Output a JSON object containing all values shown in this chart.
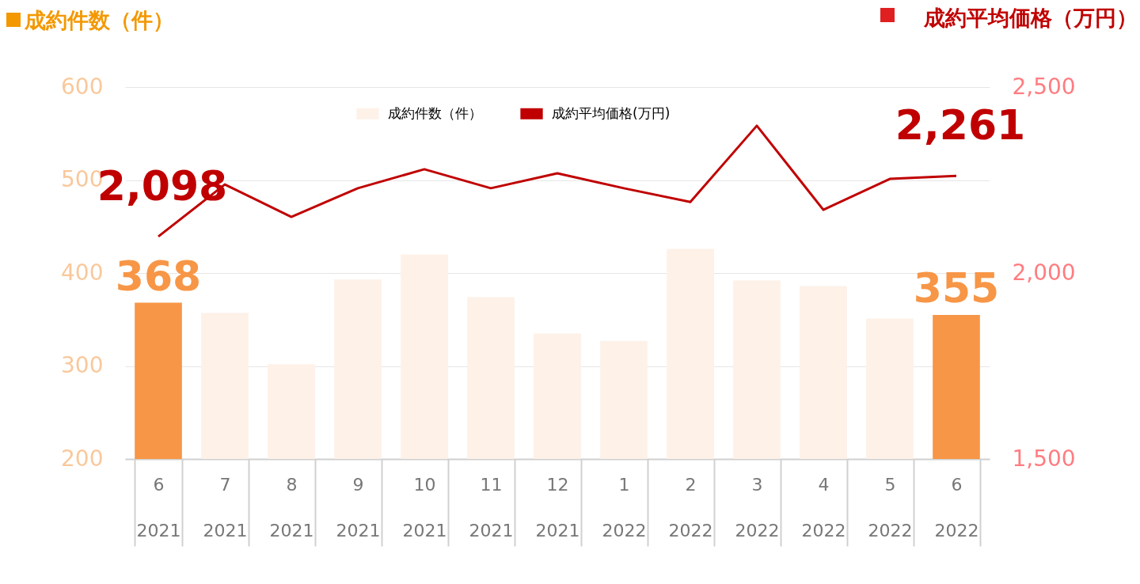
{
  "chart_data": {
    "type": "bar",
    "ylabel": "成約件数（件）",
    "y2label": "成約平均価格（万円）",
    "categories": [
      "6\n2021",
      "7\n2021",
      "8\n2021",
      "9\n2021",
      "10\n2021",
      "11\n2021",
      "12\n2021",
      "1\n2022",
      "2\n2022",
      "3\n2022",
      "4\n2022",
      "5\n2022",
      "6\n2022"
    ],
    "series": [
      {
        "name": "成約件数（件）",
        "color": "#fdf1e8",
        "colors": [
          "#f79646",
          "#fdf1e8",
          "#fdf1e8",
          "#fdf1e8",
          "#fdf1e8",
          "#fdf1e8",
          "#fdf1e8",
          "#fdf1e8",
          "#fdf1e8",
          "#fdf1e8",
          "#fdf1e8",
          "#fdf1e8",
          "#f79646"
        ],
        "values": [
          368,
          357,
          302,
          393,
          420,
          374,
          335,
          327,
          426,
          392,
          386,
          351,
          355
        ],
        "value_labels": [
          "368",
          null,
          null,
          null,
          null,
          null,
          null,
          null,
          null,
          null,
          null,
          null,
          "355"
        ]
      },
      {
        "name": "成約平均価格(万円)",
        "type": "line",
        "axis": "y2",
        "color": "#c00000",
        "values": [
          2098,
          2238,
          2151,
          2228,
          2279,
          2228,
          2268,
          2228,
          2191,
          2396,
          2170,
          2253,
          2261
        ],
        "value_labels": [
          "2,098",
          null,
          null,
          null,
          null,
          null,
          null,
          null,
          null,
          null,
          null,
          null,
          "2,261"
        ]
      }
    ],
    "ylim": [
      200,
      600
    ],
    "yticks": [
      200,
      300,
      400,
      500,
      600
    ],
    "y2lim": [
      1500,
      2500
    ],
    "y2ticks": [
      {
        "value": 1500,
        "label": "1,500"
      },
      {
        "value": 2000,
        "label": "2,000"
      },
      {
        "value": 2500,
        "label": "2,500"
      }
    ],
    "grid": "y",
    "legend": "top"
  }
}
